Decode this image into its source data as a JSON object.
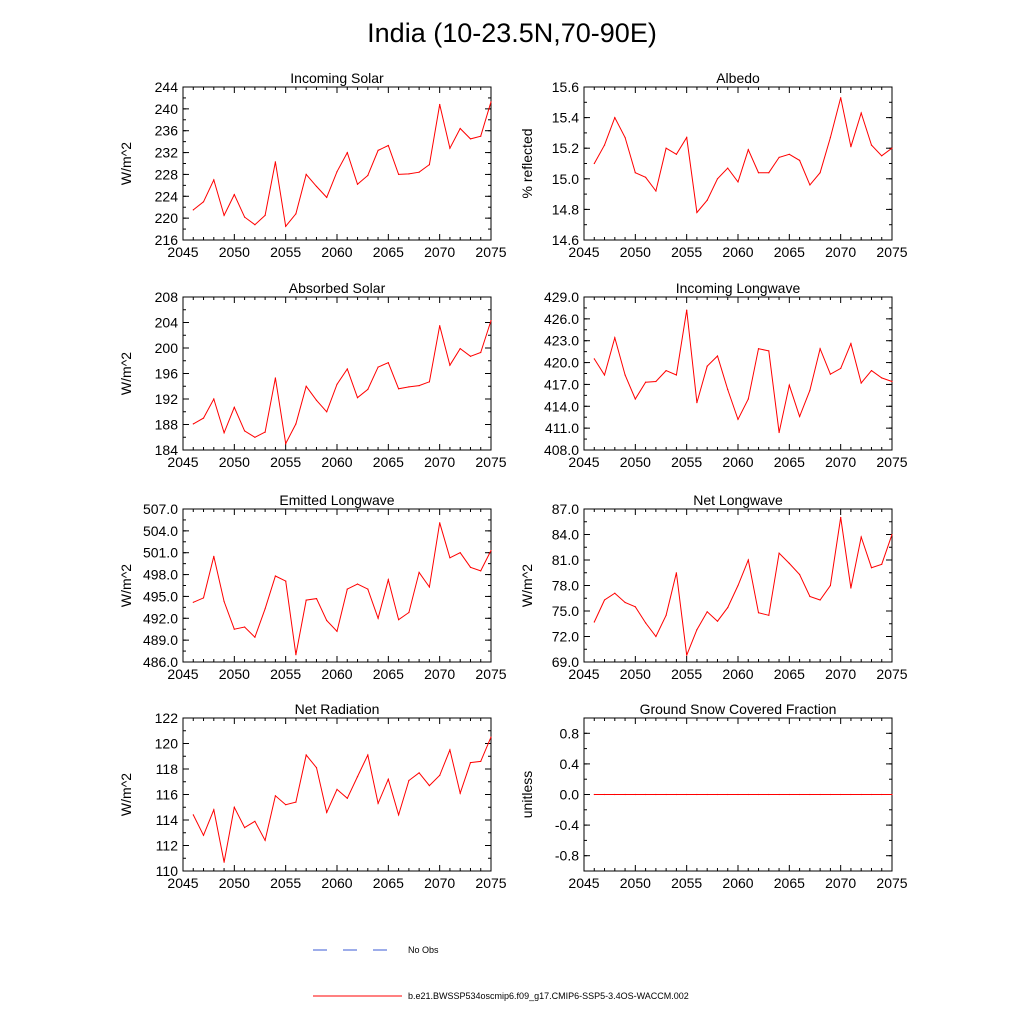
{
  "title": "India (10-23.5N,70-90E)",
  "colors": {
    "model": "#ff0000",
    "obs": "#3b5bd6",
    "axis": "#000000"
  },
  "legend": {
    "obs_label": "No Obs",
    "model_label": "b.e21.BWSSP534oscmip6.f09_g17.CMIP6-SSP5-3.4OS-WACCM.002"
  },
  "chart_data": [
    {
      "type": "line",
      "title": "Incoming Solar",
      "ylabel": "W/m^2",
      "xlim": [
        2045,
        2075
      ],
      "ylim": [
        216,
        244
      ],
      "xticks": [
        2045,
        2050,
        2055,
        2060,
        2065,
        2070,
        2075
      ],
      "yticks": [
        216,
        220,
        224,
        228,
        232,
        236,
        240,
        244
      ],
      "ytick_labels": [
        "216",
        "220",
        "224",
        "228",
        "232",
        "236",
        "240",
        "244"
      ],
      "x": [
        2046,
        2047,
        2048,
        2049,
        2050,
        2051,
        2052,
        2053,
        2054,
        2055,
        2056,
        2057,
        2058,
        2059,
        2060,
        2061,
        2062,
        2063,
        2064,
        2065,
        2066,
        2067,
        2068,
        2069,
        2070,
        2071,
        2072,
        2073,
        2074,
        2075
      ],
      "values": [
        221.5,
        223.0,
        227.0,
        220.5,
        224.3,
        220.2,
        218.8,
        220.5,
        230.3,
        218.5,
        220.8,
        228.0,
        225.8,
        223.8,
        228.5,
        232.0,
        226.2,
        227.8,
        232.4,
        233.3,
        228.0,
        228.1,
        228.4,
        229.8,
        240.8,
        232.8,
        236.4,
        234.5,
        235.0,
        241.3
      ]
    },
    {
      "type": "line",
      "title": "Albedo",
      "ylabel": "% reflected",
      "xlim": [
        2045,
        2075
      ],
      "ylim": [
        14.6,
        15.6
      ],
      "xticks": [
        2045,
        2050,
        2055,
        2060,
        2065,
        2070,
        2075
      ],
      "yticks": [
        14.6,
        14.8,
        15.0,
        15.2,
        15.4,
        15.6
      ],
      "ytick_labels": [
        "14.6",
        "14.8",
        "15.0",
        "15.2",
        "15.4",
        "15.6"
      ],
      "x": [
        2046,
        2047,
        2048,
        2049,
        2050,
        2051,
        2052,
        2053,
        2054,
        2055,
        2056,
        2057,
        2058,
        2059,
        2060,
        2061,
        2062,
        2063,
        2064,
        2065,
        2066,
        2067,
        2068,
        2069,
        2070,
        2071,
        2072,
        2073,
        2074,
        2075
      ],
      "values": [
        15.1,
        15.22,
        15.4,
        15.27,
        15.04,
        15.01,
        14.92,
        15.2,
        15.16,
        15.27,
        14.78,
        14.86,
        15.0,
        15.07,
        14.98,
        15.19,
        15.04,
        15.04,
        15.14,
        15.16,
        15.12,
        14.96,
        15.04,
        15.27,
        15.53,
        15.21,
        15.43,
        15.22,
        15.15,
        15.2
      ]
    },
    {
      "type": "line",
      "title": "Absorbed Solar",
      "ylabel": "W/m^2",
      "xlim": [
        2045,
        2075
      ],
      "ylim": [
        184,
        208
      ],
      "xticks": [
        2045,
        2050,
        2055,
        2060,
        2065,
        2070,
        2075
      ],
      "yticks": [
        184,
        188,
        192,
        196,
        200,
        204,
        208
      ],
      "ytick_labels": [
        "184",
        "188",
        "192",
        "196",
        "200",
        "204",
        "208"
      ],
      "x": [
        2046,
        2047,
        2048,
        2049,
        2050,
        2051,
        2052,
        2053,
        2054,
        2055,
        2056,
        2057,
        2058,
        2059,
        2060,
        2061,
        2062,
        2063,
        2064,
        2065,
        2066,
        2067,
        2068,
        2069,
        2070,
        2071,
        2072,
        2073,
        2074,
        2075
      ],
      "values": [
        188.1,
        189.0,
        192.0,
        186.7,
        190.7,
        187.0,
        186.0,
        186.8,
        195.3,
        185.0,
        188.1,
        194.0,
        191.8,
        190.0,
        194.3,
        196.7,
        192.2,
        193.5,
        197.0,
        197.7,
        193.6,
        193.9,
        194.1,
        194.7,
        203.5,
        197.3,
        199.9,
        198.7,
        199.3,
        204.3
      ]
    },
    {
      "type": "line",
      "title": "Incoming Longwave",
      "ylabel": "",
      "xlim": [
        2045,
        2075
      ],
      "ylim": [
        408,
        429
      ],
      "xticks": [
        2045,
        2050,
        2055,
        2060,
        2065,
        2070,
        2075
      ],
      "yticks": [
        408,
        411,
        414,
        417,
        420,
        423,
        426,
        429
      ],
      "ytick_labels": [
        "408.0",
        "411.0",
        "414.0",
        "417.0",
        "420.0",
        "423.0",
        "426.0",
        "429.0"
      ],
      "x": [
        2046,
        2047,
        2048,
        2049,
        2050,
        2051,
        2052,
        2053,
        2054,
        2055,
        2056,
        2057,
        2058,
        2059,
        2060,
        2061,
        2062,
        2063,
        2064,
        2065,
        2066,
        2067,
        2068,
        2069,
        2070,
        2071,
        2072,
        2073,
        2074,
        2075
      ],
      "values": [
        420.5,
        418.3,
        423.4,
        418.3,
        415.0,
        417.3,
        417.4,
        418.9,
        418.3,
        427.2,
        414.5,
        419.5,
        420.9,
        416.3,
        412.2,
        415.0,
        421.9,
        421.6,
        410.4,
        416.9,
        412.6,
        416.2,
        421.9,
        418.4,
        419.2,
        422.6,
        417.2,
        418.9,
        417.9,
        417.4
      ]
    },
    {
      "type": "line",
      "title": "Emitted Longwave",
      "ylabel": "W/m^2",
      "xlim": [
        2045,
        2075
      ],
      "ylim": [
        486,
        507
      ],
      "xticks": [
        2045,
        2050,
        2055,
        2060,
        2065,
        2070,
        2075
      ],
      "yticks": [
        486,
        489,
        492,
        495,
        498,
        501,
        504,
        507
      ],
      "ytick_labels": [
        "486.0",
        "489.0",
        "492.0",
        "495.0",
        "498.0",
        "501.0",
        "504.0",
        "507.0"
      ],
      "x": [
        2046,
        2047,
        2048,
        2049,
        2050,
        2051,
        2052,
        2053,
        2054,
        2055,
        2056,
        2057,
        2058,
        2059,
        2060,
        2061,
        2062,
        2063,
        2064,
        2065,
        2066,
        2067,
        2068,
        2069,
        2070,
        2071,
        2072,
        2073,
        2074,
        2075
      ],
      "values": [
        494.2,
        494.8,
        500.5,
        494.3,
        490.5,
        490.8,
        489.4,
        493.3,
        497.8,
        497.1,
        487.0,
        494.5,
        494.7,
        491.7,
        490.2,
        496.0,
        496.7,
        496.0,
        492.0,
        497.3,
        491.8,
        492.8,
        498.3,
        496.3,
        505.1,
        500.3,
        501.0,
        499.0,
        498.5,
        501.3
      ]
    },
    {
      "type": "line",
      "title": "Net Longwave",
      "ylabel": "W/m^2",
      "xlim": [
        2045,
        2075
      ],
      "ylim": [
        69,
        87
      ],
      "xticks": [
        2045,
        2050,
        2055,
        2060,
        2065,
        2070,
        2075
      ],
      "yticks": [
        69,
        72,
        75,
        78,
        81,
        84,
        87
      ],
      "ytick_labels": [
        "69.0",
        "72.0",
        "75.0",
        "78.0",
        "81.0",
        "84.0",
        "87.0"
      ],
      "x": [
        2046,
        2047,
        2048,
        2049,
        2050,
        2051,
        2052,
        2053,
        2054,
        2055,
        2056,
        2057,
        2058,
        2059,
        2060,
        2061,
        2062,
        2063,
        2064,
        2065,
        2066,
        2067,
        2068,
        2069,
        2070,
        2071,
        2072,
        2073,
        2074,
        2075
      ],
      "values": [
        73.7,
        76.3,
        77.1,
        76.0,
        75.5,
        73.6,
        72.0,
        74.5,
        79.5,
        69.8,
        72.8,
        74.9,
        73.8,
        75.4,
        78.0,
        81.0,
        74.8,
        74.5,
        81.8,
        80.6,
        79.3,
        76.7,
        76.3,
        78.0,
        86.0,
        77.7,
        83.7,
        80.1,
        80.5,
        84.0
      ]
    },
    {
      "type": "line",
      "title": "Net Radiation",
      "ylabel": "W/m^2",
      "xlim": [
        2045,
        2075
      ],
      "ylim": [
        110,
        122
      ],
      "xticks": [
        2045,
        2050,
        2055,
        2060,
        2065,
        2070,
        2075
      ],
      "yticks": [
        110,
        112,
        114,
        116,
        118,
        120,
        122
      ],
      "ytick_labels": [
        "110",
        "112",
        "114",
        "116",
        "118",
        "120",
        "122"
      ],
      "x": [
        2046,
        2047,
        2048,
        2049,
        2050,
        2051,
        2052,
        2053,
        2054,
        2055,
        2056,
        2057,
        2058,
        2059,
        2060,
        2061,
        2062,
        2063,
        2064,
        2065,
        2066,
        2067,
        2068,
        2069,
        2070,
        2071,
        2072,
        2073,
        2074,
        2075
      ],
      "values": [
        114.4,
        112.8,
        114.8,
        110.7,
        115.0,
        113.4,
        113.9,
        112.4,
        115.9,
        115.2,
        115.4,
        119.1,
        118.1,
        114.6,
        116.4,
        115.7,
        117.4,
        119.1,
        115.3,
        117.2,
        114.4,
        117.1,
        117.7,
        116.7,
        117.5,
        119.5,
        116.1,
        118.5,
        118.6,
        120.5
      ]
    },
    {
      "type": "line",
      "title": "Ground Snow Covered Fraction",
      "ylabel": "unitless",
      "xlim": [
        2045,
        2075
      ],
      "ylim": [
        -1.0,
        1.0
      ],
      "xticks": [
        2045,
        2050,
        2055,
        2060,
        2065,
        2070,
        2075
      ],
      "yticks": [
        -0.8,
        -0.4,
        0.0,
        0.4,
        0.8
      ],
      "ytick_labels": [
        "-0.8",
        "-0.4",
        "0.0",
        "0.4",
        "0.8"
      ],
      "x": [
        2046,
        2047,
        2048,
        2049,
        2050,
        2051,
        2052,
        2053,
        2054,
        2055,
        2056,
        2057,
        2058,
        2059,
        2060,
        2061,
        2062,
        2063,
        2064,
        2065,
        2066,
        2067,
        2068,
        2069,
        2070,
        2071,
        2072,
        2073,
        2074,
        2075
      ],
      "values": [
        0,
        0,
        0,
        0,
        0,
        0,
        0,
        0,
        0,
        0,
        0,
        0,
        0,
        0,
        0,
        0,
        0,
        0,
        0,
        0,
        0,
        0,
        0,
        0,
        0,
        0,
        0,
        0,
        0,
        0
      ]
    }
  ]
}
